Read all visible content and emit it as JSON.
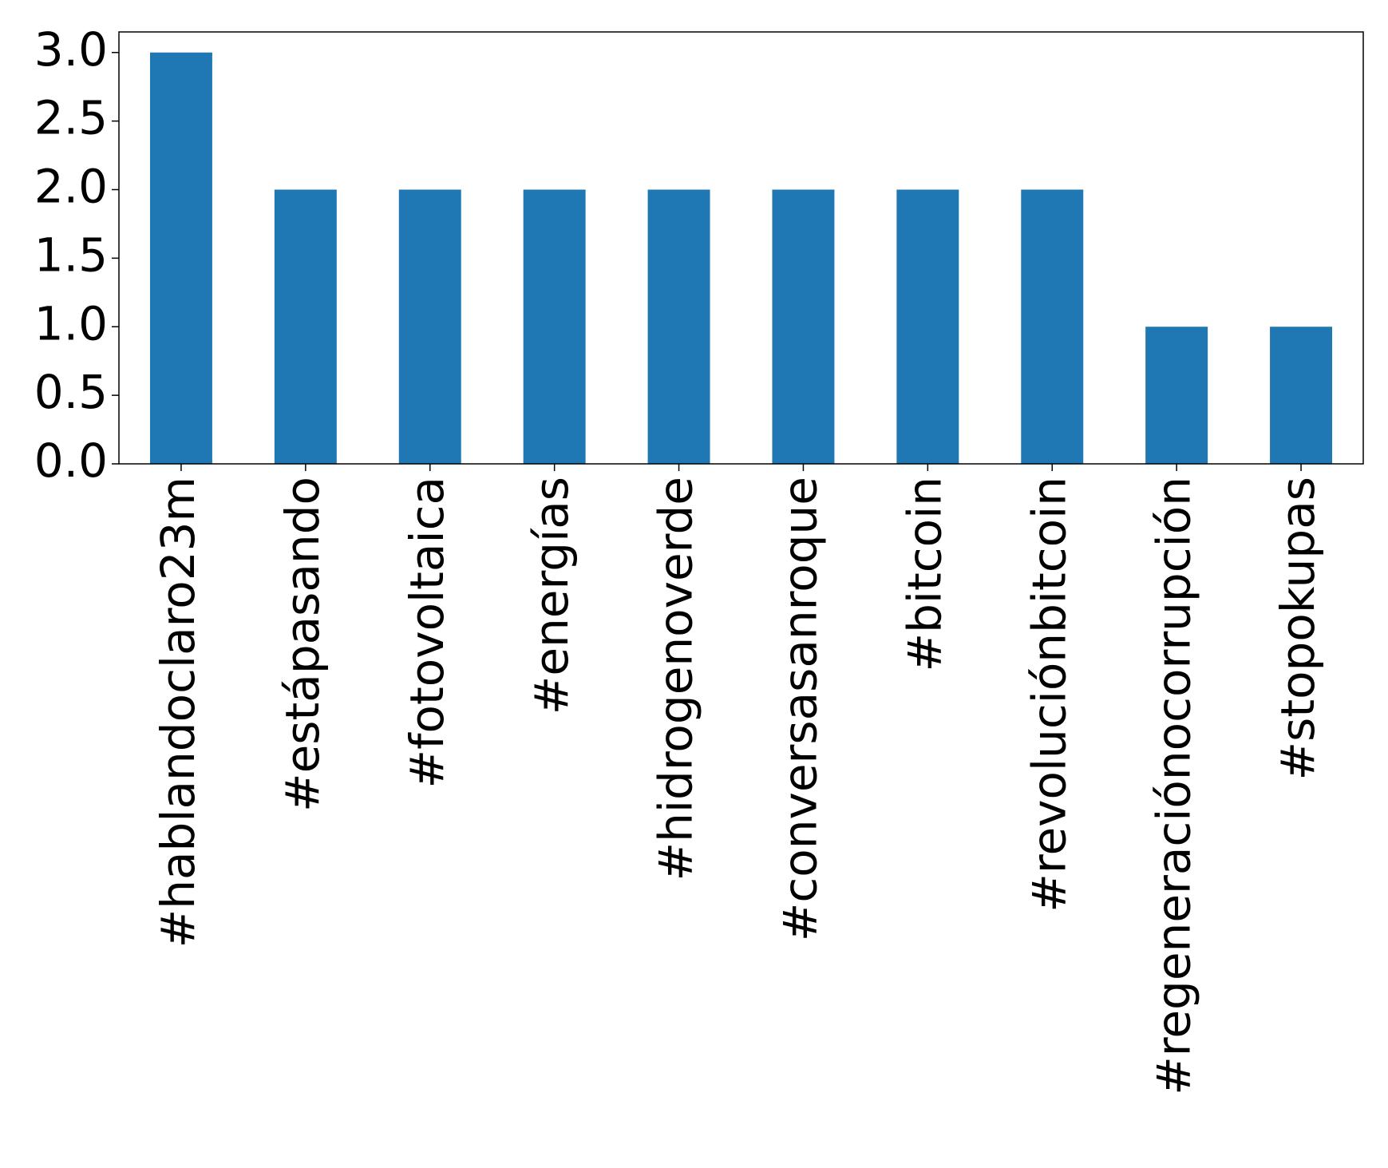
{
  "chart_data": {
    "type": "bar",
    "categories": [
      "#hablandoclaro23m",
      "#estápasando",
      "#fotovoltaica",
      "#energías",
      "#hidrogenoverde",
      "#conversasanroque",
      "#bitcoin",
      "#revoluciónbitcoin",
      "#regeneraciónocorrupción",
      "#stopokupas"
    ],
    "values": [
      3,
      2,
      2,
      2,
      2,
      2,
      2,
      2,
      1,
      1
    ],
    "color": "#1f77b4",
    "ylim": [
      0,
      3.15
    ],
    "yticks": [
      {
        "value": 0,
        "label": "0.0"
      },
      0.5,
      {
        "value": 1,
        "label": "1.0"
      },
      1.5,
      {
        "value": 2,
        "label": "2.0"
      },
      2.5,
      {
        "value": 3,
        "label": "3.0"
      }
    ],
    "grid": false
  }
}
